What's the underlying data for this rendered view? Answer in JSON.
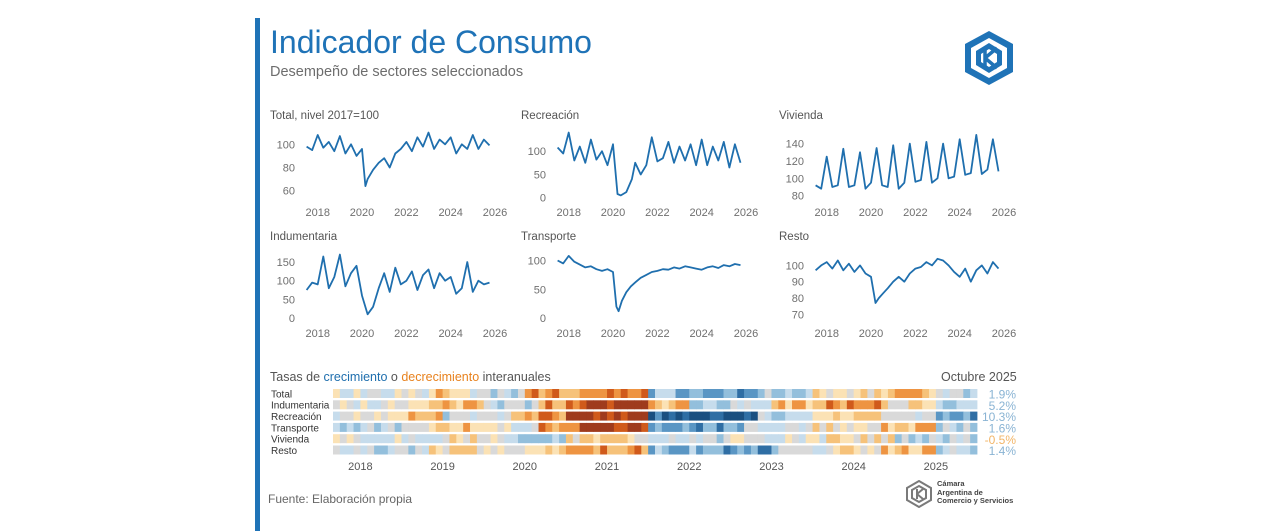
{
  "header": {
    "title": "Indicador de Consumo",
    "subtitle": "Desempeño de sectores seleccionados"
  },
  "heatmap": {
    "heading_prefix": "Tasas de ",
    "heading_growth": "crecimiento",
    "heading_mid": " o ",
    "heading_decline": "decrecimiento",
    "heading_suffix": " interanuales",
    "month": "Octubre 2025",
    "years": [
      "2018",
      "2019",
      "2020",
      "2021",
      "2022",
      "2023",
      "2024",
      "2025"
    ],
    "rows": [
      {
        "label": "Total",
        "value": "1.9%",
        "value_num": 1.9
      },
      {
        "label": "Indumentaria",
        "value": "5.2%",
        "value_num": 5.2
      },
      {
        "label": "Recreación",
        "value": "10.3%",
        "value_num": 10.3
      },
      {
        "label": "Transporte",
        "value": "1.6%",
        "value_num": 1.6
      },
      {
        "label": "Vivienda",
        "value": "-0.5%",
        "value_num": -0.5
      },
      {
        "label": "Resto",
        "value": "1.4%",
        "value_num": 1.4
      }
    ]
  },
  "footer": {
    "source": "Fuente: Elaboración propia",
    "org_line1": "Cámara",
    "org_line2": "Argentina de",
    "org_line3": "Comercio y Servicios"
  },
  "colors": {
    "accent": "#1f73b7",
    "line": "#1f6fae",
    "growth": "#1f6fae",
    "decline": "#e8821e"
  },
  "chart_data": [
    {
      "type": "line",
      "title": "Total, nivel 2017=100",
      "x_ticks": [
        "2018",
        "2020",
        "2022",
        "2024",
        "2026"
      ],
      "xlim": [
        2017.2,
        2026.0
      ],
      "y_ticks": [
        60,
        80,
        100
      ],
      "ylim": [
        52,
        114
      ],
      "x": [
        2017.5,
        2017.75,
        2018.0,
        2018.25,
        2018.5,
        2018.75,
        2019.0,
        2019.25,
        2019.5,
        2019.75,
        2020.0,
        2020.15,
        2020.25,
        2020.5,
        2020.75,
        2021.0,
        2021.25,
        2021.5,
        2021.75,
        2022.0,
        2022.25,
        2022.5,
        2022.75,
        2023.0,
        2023.25,
        2023.5,
        2023.75,
        2024.0,
        2024.25,
        2024.5,
        2024.75,
        2025.0,
        2025.25,
        2025.5,
        2025.75
      ],
      "values": [
        98,
        95,
        108,
        97,
        102,
        94,
        107,
        92,
        100,
        90,
        96,
        64,
        70,
        78,
        84,
        88,
        80,
        92,
        96,
        102,
        94,
        106,
        98,
        110,
        96,
        104,
        100,
        106,
        92,
        100,
        96,
        108,
        96,
        104,
        99
      ]
    },
    {
      "type": "line",
      "title": "Recreación",
      "x_ticks": [
        "2018",
        "2020",
        "2022",
        "2024",
        "2026"
      ],
      "xlim": [
        2017.2,
        2026.0
      ],
      "y_ticks": [
        0,
        50,
        100
      ],
      "ylim": [
        -5,
        150
      ],
      "x": [
        2017.5,
        2017.75,
        2018.0,
        2018.25,
        2018.5,
        2018.75,
        2019.0,
        2019.25,
        2019.5,
        2019.75,
        2020.0,
        2020.2,
        2020.35,
        2020.6,
        2020.85,
        2021.0,
        2021.25,
        2021.5,
        2021.75,
        2022.0,
        2022.25,
        2022.5,
        2022.75,
        2023.0,
        2023.25,
        2023.5,
        2023.75,
        2024.0,
        2024.25,
        2024.5,
        2024.75,
        2025.0,
        2025.25,
        2025.5,
        2025.75
      ],
      "values": [
        108,
        95,
        140,
        80,
        110,
        75,
        125,
        82,
        100,
        70,
        115,
        8,
        5,
        12,
        40,
        75,
        50,
        70,
        130,
        78,
        85,
        120,
        75,
        110,
        80,
        115,
        70,
        125,
        70,
        110,
        80,
        120,
        65,
        115,
        75
      ]
    },
    {
      "type": "line",
      "title": "Vivienda",
      "x_ticks": [
        "2018",
        "2020",
        "2022",
        "2024",
        "2026"
      ],
      "xlim": [
        2017.2,
        2026.0
      ],
      "y_ticks": [
        80,
        100,
        120,
        140
      ],
      "ylim": [
        75,
        158
      ],
      "x": [
        2017.5,
        2017.75,
        2018.0,
        2018.25,
        2018.5,
        2018.75,
        2019.0,
        2019.25,
        2019.5,
        2019.75,
        2020.0,
        2020.25,
        2020.5,
        2020.75,
        2021.0,
        2021.25,
        2021.5,
        2021.75,
        2022.0,
        2022.25,
        2022.5,
        2022.75,
        2023.0,
        2023.25,
        2023.5,
        2023.75,
        2024.0,
        2024.25,
        2024.5,
        2024.75,
        2025.0,
        2025.25,
        2025.5,
        2025.75
      ],
      "values": [
        92,
        88,
        125,
        90,
        92,
        134,
        90,
        92,
        130,
        88,
        95,
        135,
        92,
        90,
        138,
        88,
        95,
        140,
        96,
        98,
        142,
        95,
        100,
        140,
        100,
        102,
        145,
        104,
        106,
        150,
        105,
        110,
        145,
        108
      ]
    },
    {
      "type": "line",
      "title": "Indumentaria",
      "x_ticks": [
        "2018",
        "2020",
        "2022",
        "2024",
        "2026"
      ],
      "xlim": [
        2017.2,
        2026.0
      ],
      "y_ticks": [
        0,
        50,
        100,
        150
      ],
      "ylim": [
        -8,
        185
      ],
      "x": [
        2017.5,
        2017.75,
        2018.0,
        2018.25,
        2018.5,
        2018.75,
        2019.0,
        2019.25,
        2019.5,
        2019.75,
        2020.0,
        2020.25,
        2020.5,
        2020.75,
        2021.0,
        2021.25,
        2021.5,
        2021.75,
        2022.0,
        2022.25,
        2022.5,
        2022.75,
        2023.0,
        2023.25,
        2023.5,
        2023.75,
        2024.0,
        2024.25,
        2024.5,
        2024.75,
        2025.0,
        2025.25,
        2025.5,
        2025.75
      ],
      "values": [
        75,
        95,
        90,
        165,
        80,
        110,
        170,
        85,
        120,
        140,
        60,
        10,
        30,
        80,
        120,
        70,
        135,
        90,
        100,
        125,
        75,
        115,
        130,
        80,
        120,
        100,
        110,
        65,
        80,
        150,
        70,
        100,
        90,
        95
      ]
    },
    {
      "type": "line",
      "title": "Transporte",
      "x_ticks": [
        "2018",
        "2020",
        "2022",
        "2024",
        "2026"
      ],
      "xlim": [
        2017.2,
        2026.0
      ],
      "y_ticks": [
        0,
        50,
        100
      ],
      "ylim": [
        -5,
        120
      ],
      "x": [
        2017.5,
        2017.75,
        2018.0,
        2018.25,
        2018.5,
        2018.75,
        2019.0,
        2019.25,
        2019.5,
        2019.75,
        2020.0,
        2020.15,
        2020.25,
        2020.4,
        2020.6,
        2020.8,
        2021.0,
        2021.25,
        2021.5,
        2021.75,
        2022.0,
        2022.25,
        2022.5,
        2022.75,
        2023.0,
        2023.25,
        2023.5,
        2023.75,
        2024.0,
        2024.25,
        2024.5,
        2024.75,
        2025.0,
        2025.25,
        2025.5,
        2025.75
      ],
      "values": [
        100,
        95,
        108,
        98,
        93,
        88,
        90,
        85,
        82,
        85,
        80,
        20,
        12,
        30,
        45,
        55,
        62,
        70,
        75,
        80,
        82,
        85,
        84,
        88,
        86,
        90,
        88,
        86,
        84,
        88,
        90,
        87,
        92,
        90,
        94,
        92
      ]
    },
    {
      "type": "line",
      "title": "Resto",
      "x_ticks": [
        "2018",
        "2020",
        "2022",
        "2024",
        "2026"
      ],
      "xlim": [
        2017.2,
        2026.0
      ],
      "y_ticks": [
        70,
        80,
        90,
        100
      ],
      "ylim": [
        66,
        110
      ],
      "x": [
        2017.5,
        2017.75,
        2018.0,
        2018.25,
        2018.5,
        2018.75,
        2019.0,
        2019.25,
        2019.5,
        2019.75,
        2020.0,
        2020.2,
        2020.35,
        2020.55,
        2020.75,
        2021.0,
        2021.25,
        2021.5,
        2021.75,
        2022.0,
        2022.25,
        2022.5,
        2022.75,
        2023.0,
        2023.25,
        2023.5,
        2023.75,
        2024.0,
        2024.25,
        2024.5,
        2024.75,
        2025.0,
        2025.25,
        2025.5,
        2025.75
      ],
      "values": [
        97,
        100,
        102,
        98,
        103,
        97,
        101,
        96,
        100,
        95,
        93,
        77,
        80,
        83,
        86,
        90,
        93,
        90,
        95,
        98,
        99,
        102,
        100,
        104,
        103,
        100,
        96,
        93,
        98,
        90,
        97,
        100,
        95,
        102,
        98
      ]
    }
  ]
}
